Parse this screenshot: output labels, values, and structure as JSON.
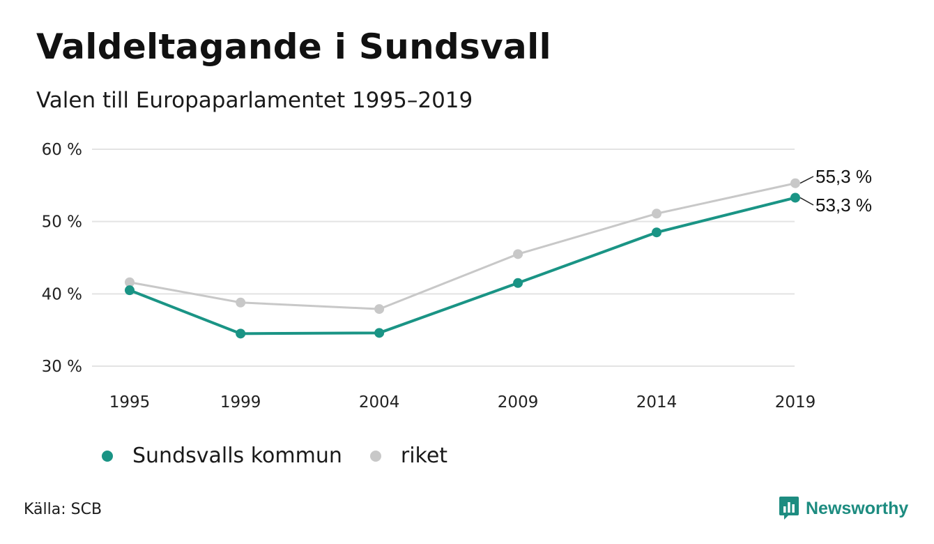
{
  "header": {
    "title": "Valdeltagande i Sundsvall",
    "subtitle": "Valen till Europaparlamentet 1995–2019"
  },
  "chart_data": {
    "type": "line",
    "title": "Valdeltagande i Sundsvall",
    "subtitle": "Valen till Europaparlamentet 1995–2019",
    "categories": [
      "1995",
      "1999",
      "2004",
      "2009",
      "2014",
      "2019"
    ],
    "y_ticks": [
      "30 %",
      "40 %",
      "50 %",
      "60 %"
    ],
    "y_tick_values": [
      30,
      40,
      50,
      60
    ],
    "ylim": [
      30,
      60
    ],
    "grid": true,
    "legend_position": "bottom-left",
    "series": [
      {
        "name": "riket",
        "color": "#c8c8c8",
        "values": [
          41.6,
          38.8,
          37.9,
          45.5,
          51.1,
          55.3
        ],
        "end_label": "55,3 %"
      },
      {
        "name": "Sundsvalls kommun",
        "color": "#1a9485",
        "values": [
          40.5,
          34.5,
          34.6,
          41.5,
          48.5,
          53.3
        ],
        "end_label": "53,3 %"
      }
    ]
  },
  "legend": {
    "items": [
      {
        "label": "Sundsvalls kommun",
        "color": "#1a9485"
      },
      {
        "label": "riket",
        "color": "#c8c8c8"
      }
    ]
  },
  "footer": {
    "source": "Källa: SCB",
    "brand": "Newsworthy",
    "brand_icon": "bar-chart-speech-bubble-icon",
    "brand_color": "#1d8c80"
  }
}
